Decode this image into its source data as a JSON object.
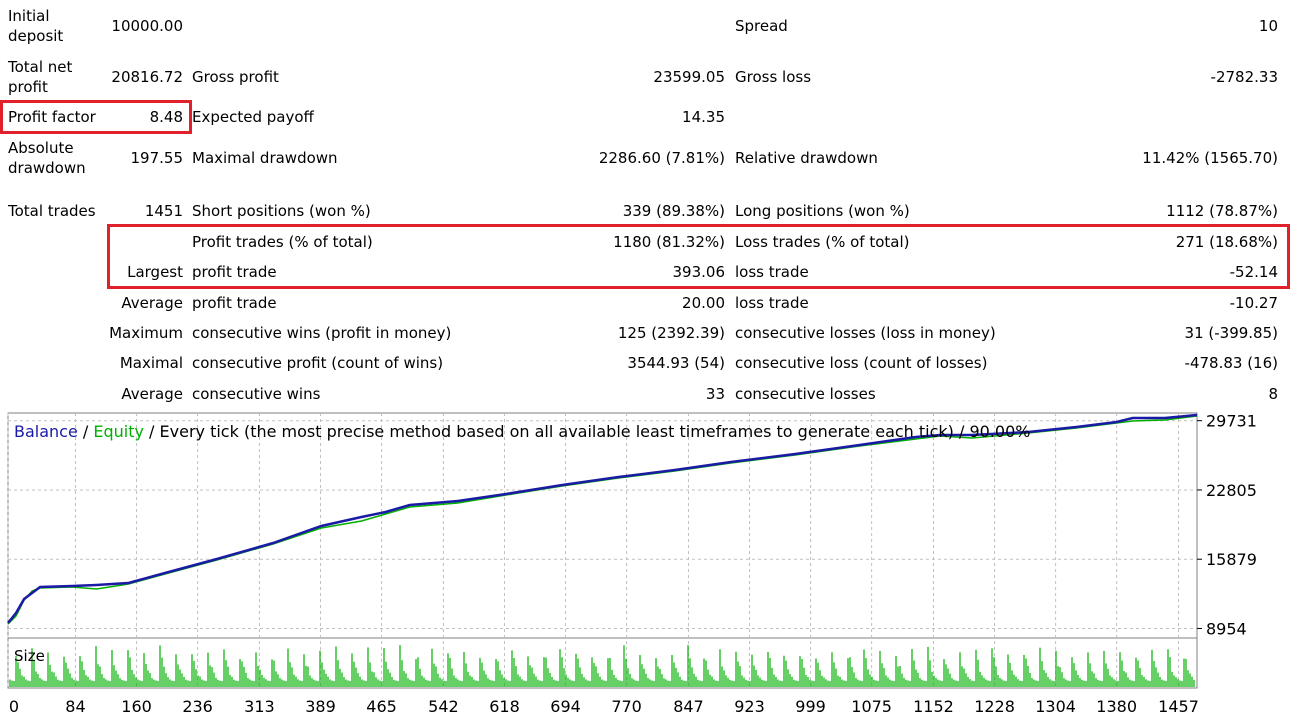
{
  "report": {
    "initial_deposit": {
      "label_l1": "Initial",
      "label_l2": "deposit",
      "value": "10000.00"
    },
    "spread": {
      "label": "Spread",
      "value": "10"
    },
    "total_net_profit": {
      "label_l1": "Total net",
      "label_l2": "profit",
      "value": "20816.72"
    },
    "gross_profit": {
      "label": "Gross profit",
      "value": "23599.05"
    },
    "gross_loss": {
      "label": "Gross loss",
      "value": "-2782.33"
    },
    "profit_factor": {
      "label": "Profit factor",
      "value": "8.48"
    },
    "expected_payoff": {
      "label": "Expected payoff",
      "value": "14.35"
    },
    "absolute_drawdown": {
      "label_l1": "Absolute",
      "label_l2": "drawdown",
      "value": "197.55"
    },
    "maximal_drawdown": {
      "label": "Maximal drawdown",
      "value": "2286.60 (7.81%)"
    },
    "relative_drawdown": {
      "label": "Relative drawdown",
      "value": "11.42% (1565.70)"
    },
    "total_trades": {
      "label": "Total trades",
      "value": "1451"
    },
    "short_positions": {
      "label": "Short positions (won %)",
      "value": "339 (89.38%)"
    },
    "long_positions": {
      "label": "Long positions (won %)",
      "value": "1112 (78.87%)"
    },
    "profit_trades": {
      "label": "Profit trades (% of total)",
      "value": "1180 (81.32%)"
    },
    "loss_trades": {
      "label": "Loss trades (% of total)",
      "value": "271 (18.68%)"
    },
    "largest": {
      "prefix": "Largest",
      "profit_label": "profit trade",
      "profit_value": "393.06",
      "loss_label": "loss trade",
      "loss_value": "-52.14"
    },
    "average_trade": {
      "prefix": "Average",
      "profit_label": "profit trade",
      "profit_value": "20.00",
      "loss_label": "loss trade",
      "loss_value": "-10.27"
    },
    "maximum_consecutive": {
      "prefix": "Maximum",
      "wins_label": "consecutive wins (profit in money)",
      "wins_value": "125 (2392.39)",
      "losses_label": "consecutive losses (loss in money)",
      "losses_value": "31 (-399.85)"
    },
    "maximal_consecutive": {
      "prefix": "Maximal",
      "profit_label": "consecutive profit (count of wins)",
      "profit_value": "3544.93 (54)",
      "loss_label": "consecutive loss (count of losses)",
      "loss_value": "-478.83 (16)"
    },
    "average_consecutive": {
      "prefix": "Average",
      "wins_label": "consecutive wins",
      "wins_value": "33",
      "losses_label": "consecutive losses",
      "losses_value": "8"
    }
  },
  "colors": {
    "balance": "#1a1aa6",
    "equity": "#00b000",
    "size": "#00b000",
    "highlight": "#e0202a",
    "grid": "#c0c0c0"
  },
  "chart_data": {
    "type": "line",
    "title_parts": {
      "balance": "Balance",
      "sep1": " / ",
      "equity": "Equity",
      "rest": " / Every tick (the most precise method based on all available least timeframes to generate each tick) / 90.00%"
    },
    "size_label": "Size",
    "x_ticks": [
      0,
      84,
      160,
      236,
      313,
      389,
      465,
      542,
      618,
      694,
      770,
      847,
      923,
      999,
      1075,
      1152,
      1228,
      1304,
      1380,
      1457
    ],
    "y_ticks": [
      8954,
      15879,
      22805,
      29731
    ],
    "xlim": [
      0,
      1480
    ],
    "ylim": [
      8000,
      30500
    ],
    "series": [
      {
        "name": "Balance",
        "x": [
          0,
          10,
          20,
          40,
          80,
          110,
          150,
          200,
          260,
          330,
          390,
          440,
          470,
          500,
          560,
          620,
          690,
          760,
          830,
          900,
          980,
          1060,
          1130,
          1160,
          1200,
          1270,
          1330,
          1380,
          1400,
          1440,
          1480
        ],
        "y": [
          9500,
          10500,
          11900,
          13100,
          13200,
          13300,
          13500,
          14600,
          15900,
          17500,
          19200,
          20100,
          20600,
          21300,
          21700,
          22400,
          23300,
          24100,
          24800,
          25600,
          26400,
          27300,
          28100,
          28300,
          28300,
          28600,
          29100,
          29600,
          30000,
          30000,
          30300
        ]
      },
      {
        "name": "Equity",
        "x": [
          0,
          10,
          20,
          30,
          40,
          80,
          110,
          150,
          200,
          260,
          330,
          390,
          440,
          470,
          500,
          560,
          620,
          690,
          760,
          830,
          900,
          980,
          1060,
          1130,
          1160,
          1200,
          1270,
          1330,
          1380,
          1400,
          1440,
          1480
        ],
        "y": [
          9400,
          10200,
          11800,
          12700,
          13000,
          13100,
          12900,
          13400,
          14500,
          15800,
          17400,
          19000,
          19700,
          20400,
          21100,
          21500,
          22300,
          23200,
          24000,
          24700,
          25500,
          26300,
          27200,
          27900,
          28200,
          28000,
          28500,
          29000,
          29500,
          29700,
          29800,
          30200
        ]
      }
    ]
  }
}
